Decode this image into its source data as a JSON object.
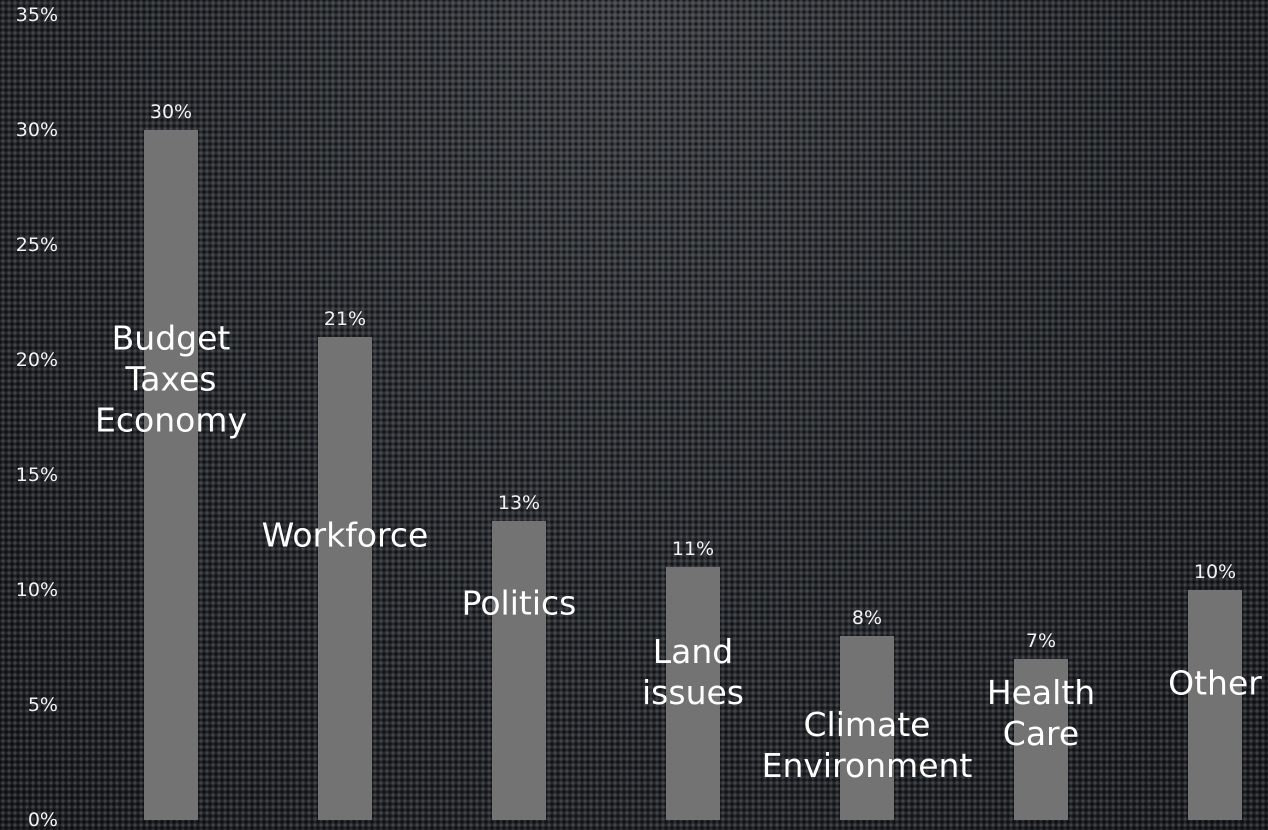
{
  "chart_data": {
    "type": "bar",
    "title": "",
    "xlabel": "",
    "ylabel": "",
    "ylim": [
      0,
      35
    ],
    "yticks": [
      {
        "value": 0,
        "label": "0%"
      },
      {
        "value": 5,
        "label": "5%"
      },
      {
        "value": 10,
        "label": "10%"
      },
      {
        "value": 15,
        "label": "15%"
      },
      {
        "value": 20,
        "label": "20%"
      },
      {
        "value": 25,
        "label": "25%"
      },
      {
        "value": 30,
        "label": "30%"
      },
      {
        "value": 35,
        "label": "35%"
      }
    ],
    "grid": false,
    "legend": "none",
    "bar_color": "#737373",
    "categories": [
      {
        "lines": [
          "Budget",
          "Taxes",
          "Economy"
        ],
        "value": 30,
        "label": "30%"
      },
      {
        "lines": [
          "Workforce"
        ],
        "value": 21,
        "label": "21%"
      },
      {
        "lines": [
          "Politics"
        ],
        "value": 13,
        "label": "13%"
      },
      {
        "lines": [
          "Land",
          "issues"
        ],
        "value": 11,
        "label": "11%"
      },
      {
        "lines": [
          "Climate",
          "Environment"
        ],
        "value": 8,
        "label": "8%"
      },
      {
        "lines": [
          "Health",
          "Care"
        ],
        "value": 7,
        "label": "7%"
      },
      {
        "lines": [
          "Other"
        ],
        "value": 10,
        "label": "10%"
      }
    ]
  }
}
